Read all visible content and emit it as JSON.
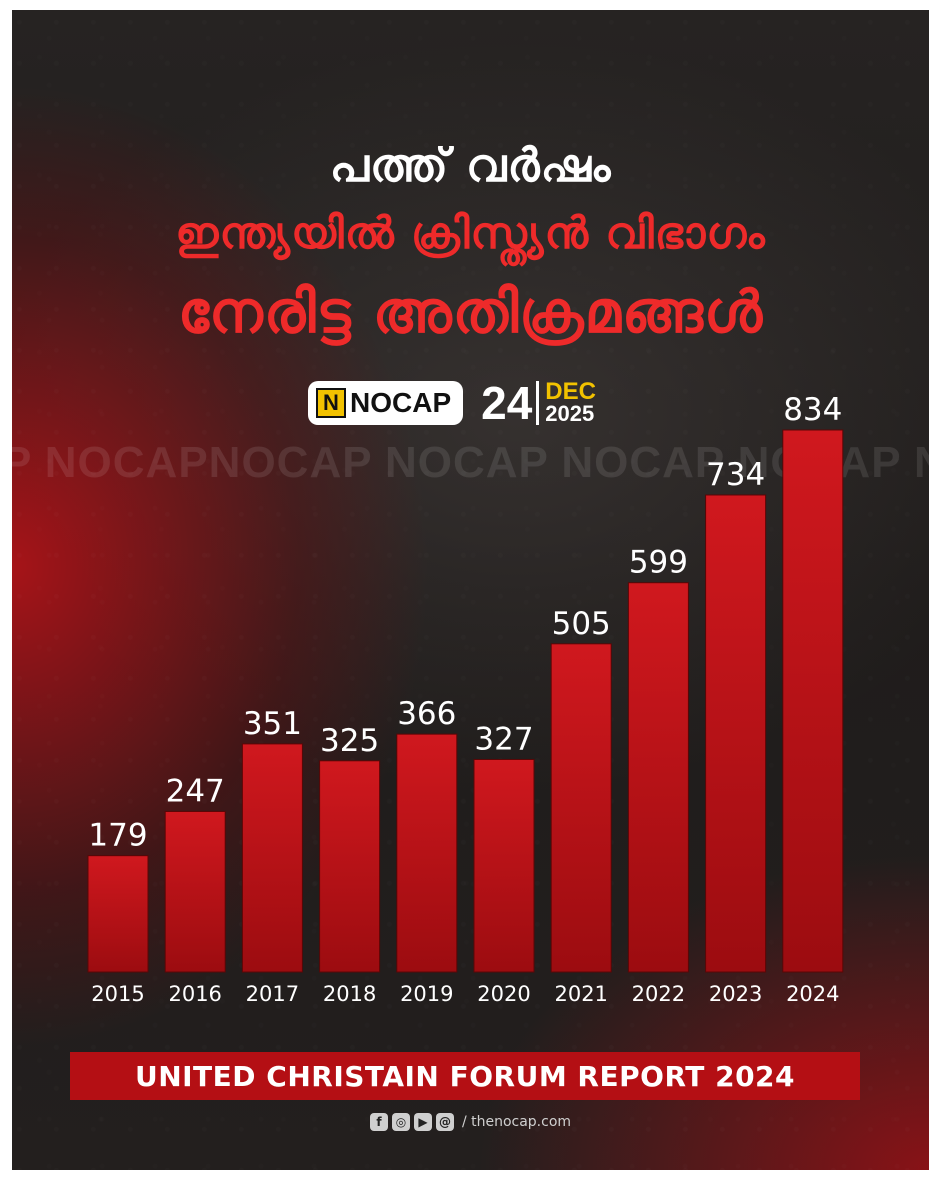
{
  "header": {
    "title_line1": "പത്ത് വർഷം",
    "title_line2": "ഇന്ത്യയിൽ ക്രിസ്ത്യൻ വിഭാഗം",
    "title_line3": "നേരിട്ട അതിക്രമങ്ങൾ"
  },
  "brand": {
    "logo_letter": "N",
    "name": "NOCAP",
    "date_day": "24",
    "date_month": "DEC",
    "date_year": "2025"
  },
  "watermark": "P NOCAPNOCAP NOCAP NOCAP NOCAP NOCAP",
  "chart_data": {
    "type": "bar",
    "title": "",
    "xlabel": "",
    "ylabel": "",
    "categories": [
      "2015",
      "2016",
      "2017",
      "2018",
      "2019",
      "2020",
      "2021",
      "2022",
      "2023",
      "2024"
    ],
    "values": [
      179,
      247,
      351,
      325,
      366,
      327,
      505,
      599,
      734,
      834
    ],
    "ylim": [
      0,
      834
    ],
    "grid": false,
    "legend": "none",
    "colors": {
      "bar": "#c4141a",
      "bar_dark": "#8e0a0e",
      "text": "#ffffff"
    }
  },
  "report": {
    "label": "UNITED CHRISTAIN FORUM REPORT 2024"
  },
  "footer": {
    "icons": [
      "facebook-icon",
      "instagram-icon",
      "youtube-icon",
      "threads-icon"
    ],
    "url": "/ thenocap.com"
  }
}
